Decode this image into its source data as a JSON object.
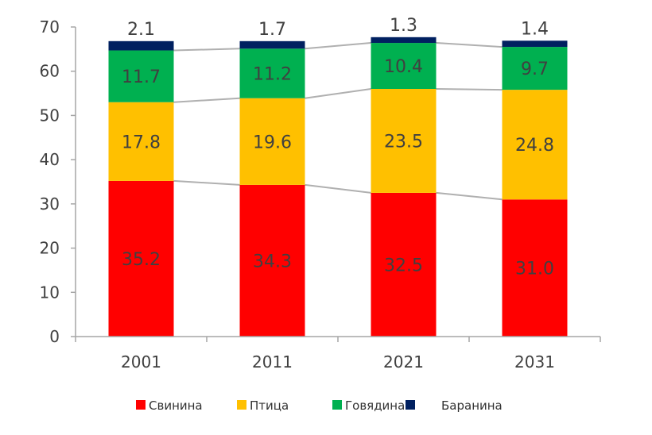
{
  "chart_data": {
    "type": "bar",
    "stacked": true,
    "categories": [
      "2001",
      "2011",
      "2021",
      "2031"
    ],
    "series": [
      {
        "name": "Свинина",
        "color": "#ff0000",
        "values": [
          35.2,
          34.3,
          32.5,
          31.0
        ],
        "labels": [
          "35.2",
          "34.3",
          "32.5",
          "31.0"
        ]
      },
      {
        "name": "Птица",
        "color": "#ffc000",
        "values": [
          17.8,
          19.6,
          23.5,
          24.8
        ],
        "labels": [
          "17.8",
          "19.6",
          "23.5",
          "24.8"
        ]
      },
      {
        "name": "Говядина",
        "color": "#00b050",
        "values": [
          11.7,
          11.2,
          10.4,
          9.7
        ],
        "labels": [
          "11.7",
          "11.2",
          "10.4",
          "9.7"
        ]
      },
      {
        "name": "Баранина",
        "color": "#002060",
        "values": [
          2.1,
          1.7,
          1.3,
          1.4
        ],
        "labels": [
          "2.1",
          "1.7",
          "1.3",
          "1.4"
        ]
      }
    ],
    "ylim": [
      0,
      70
    ],
    "yticks": [
      "0",
      "10",
      "20",
      "30",
      "40",
      "50",
      "60",
      "70"
    ],
    "grid": false,
    "series_lines": true,
    "legend": "bottom"
  }
}
